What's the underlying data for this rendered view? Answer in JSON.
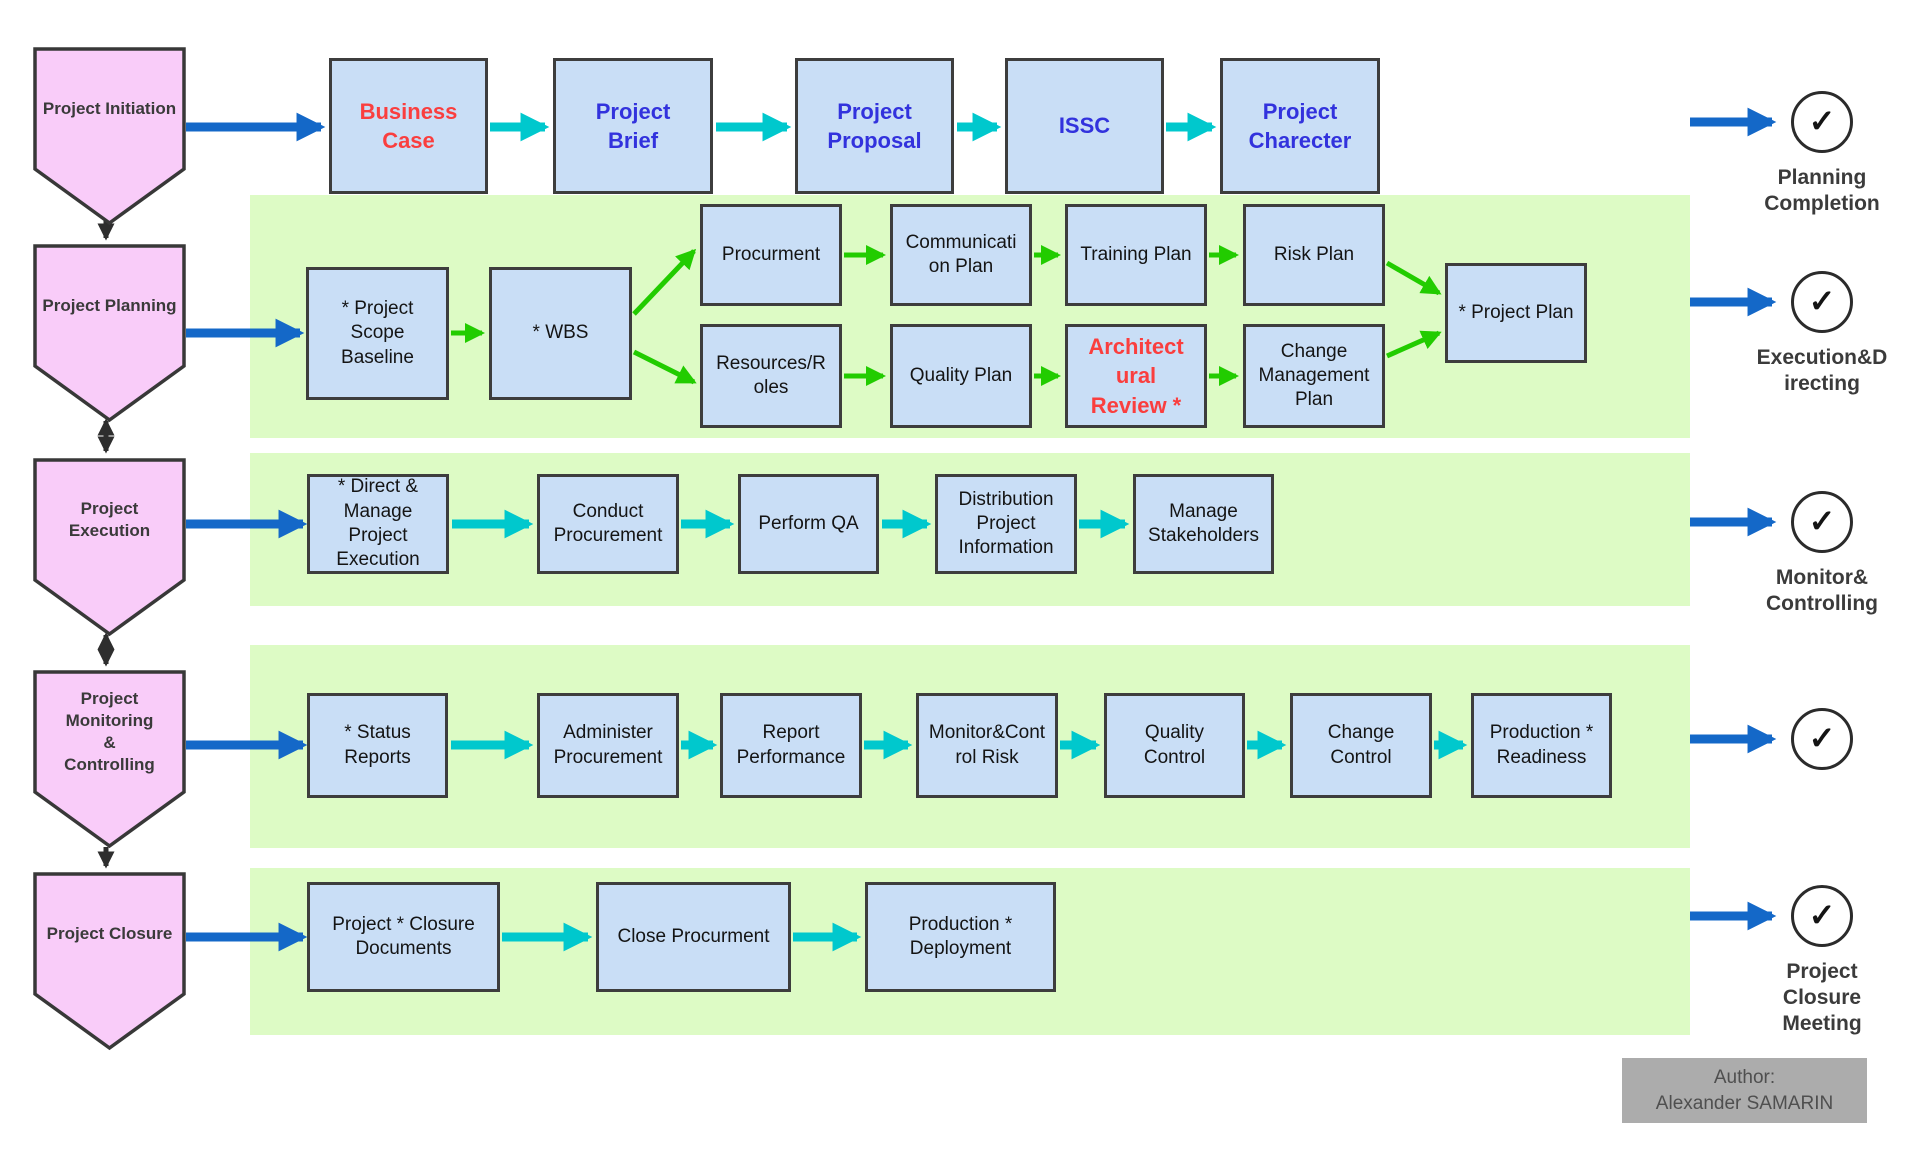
{
  "ui": {
    "check_symbol": "✓"
  },
  "phases": [
    {
      "label": "Project Initiation"
    },
    {
      "label": "Project Planning"
    },
    {
      "label": "Project\nExecution"
    },
    {
      "label": "Project\nMonitoring\n&\nControlling"
    },
    {
      "label": "Project Closure"
    }
  ],
  "milestones": [
    {
      "label": "Planning\nCompletion"
    },
    {
      "label": "Execution&D\nirecting"
    },
    {
      "label": "Monitor&\nControlling"
    },
    {
      "label": ""
    },
    {
      "label": "Project\nClosure\nMeeting"
    }
  ],
  "rows": {
    "initiation": {
      "boxes": [
        {
          "label": "Business\nCase",
          "emphasis": "red"
        },
        {
          "label": "Project\nBrief",
          "emphasis": "blue"
        },
        {
          "label": "Project\nProposal",
          "emphasis": "blue"
        },
        {
          "label": "ISSC",
          "emphasis": "blue"
        },
        {
          "label": "Project\nCharecter",
          "emphasis": "blue"
        }
      ]
    },
    "planning": {
      "main": [
        {
          "label": "* Project\nScope\nBaseline"
        },
        {
          "label": "* WBS"
        }
      ],
      "upper": [
        {
          "label": "Procurment"
        },
        {
          "label": "Communicati\non Plan"
        },
        {
          "label": "Training Plan"
        },
        {
          "label": "Risk Plan"
        }
      ],
      "lower": [
        {
          "label": "Resources/R\noles"
        },
        {
          "label": "Quality Plan"
        },
        {
          "label": "Architect\nural\nReview *",
          "emphasis": "red"
        },
        {
          "label": "Change\nManagement\nPlan"
        }
      ],
      "final": {
        "label": "* Project Plan"
      }
    },
    "execution": {
      "boxes": [
        {
          "label": "* Direct &\nManage\nProject\nExecution"
        },
        {
          "label": "Conduct\nProcurement"
        },
        {
          "label": "Perform QA"
        },
        {
          "label": "Distribution\nProject\nInformation"
        },
        {
          "label": "Manage\nStakeholders"
        }
      ]
    },
    "monitoring": {
      "boxes": [
        {
          "label": "* Status\nReports"
        },
        {
          "label": "Administer\nProcurement"
        },
        {
          "label": "Report\nPerformance"
        },
        {
          "label": "Monitor&Cont\nrol Risk"
        },
        {
          "label": "Quality\nControl"
        },
        {
          "label": "Change\nControl"
        },
        {
          "label": "Production *\nReadiness"
        }
      ]
    },
    "closure": {
      "boxes": [
        {
          "label": "Project * Closure\nDocuments"
        },
        {
          "label": "Close Procurment"
        },
        {
          "label": "Production *\nDeployment"
        }
      ]
    }
  },
  "author": {
    "label": "Author:\nAlexander SAMARIN"
  },
  "colors": {
    "band_green": "#ddfbc5",
    "box_fill": "#c9def6",
    "box_border": "#3d3d3d",
    "chevron_fill": "#f9ccf9",
    "chevron_border": "#383838",
    "arrow_blue": "#1468c8",
    "arrow_teal": "#00c8cd",
    "arrow_green": "#22cc00",
    "arrow_black": "#2e2e2e",
    "text_blue": "#3232dd",
    "text_red": "#fa3e3e",
    "text_dark": "#3b3b3b",
    "author_bg": "#acacac",
    "author_text": "#4f4f4f"
  }
}
